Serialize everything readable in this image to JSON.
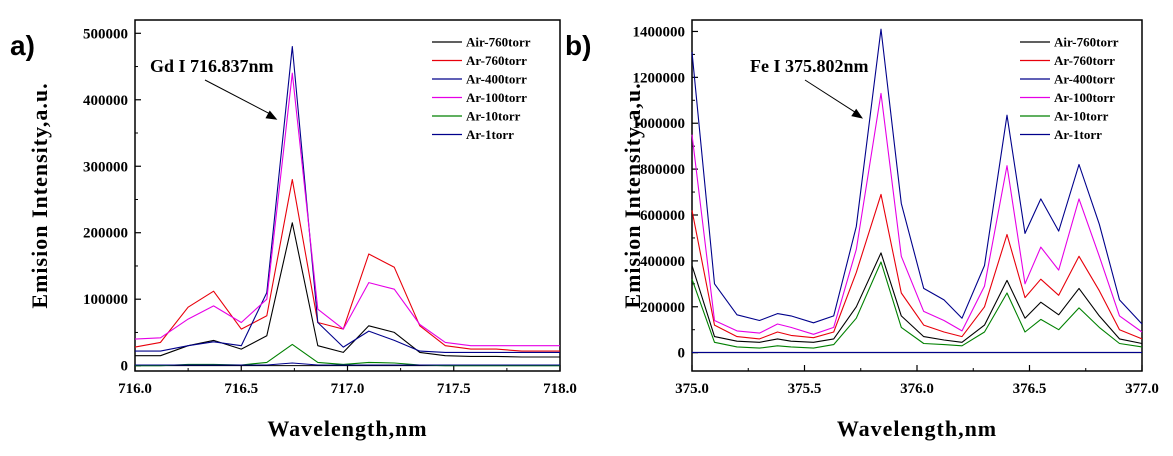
{
  "chart_data": [
    {
      "type": "line",
      "panel_label": "a)",
      "xlabel": "Wavelength,nm",
      "ylabel": "Emision Intensity,a.u.",
      "xlim": [
        716.0,
        718.0
      ],
      "ylim": [
        -8000,
        520000
      ],
      "x_ticks": [
        "716.0",
        "716.5",
        "717.0",
        "717.5",
        "718.0"
      ],
      "y_ticks": [
        "0",
        "100000",
        "200000",
        "300000",
        "400000",
        "500000"
      ],
      "grid": false,
      "legend_position": "top-right",
      "annotation": {
        "text": "Gd I 716.837nm",
        "target_x": 716.67,
        "target_y": 370000
      },
      "x": [
        716.0,
        716.12,
        716.25,
        716.37,
        716.5,
        716.62,
        716.74,
        716.86,
        716.98,
        717.1,
        717.22,
        717.34,
        717.46,
        717.58,
        717.7,
        717.82,
        717.94,
        718.0
      ],
      "series": [
        {
          "name": "Air-760torr",
          "color": "#000000",
          "values": [
            15000,
            15000,
            30000,
            38000,
            25000,
            45000,
            215000,
            30000,
            20000,
            60000,
            50000,
            20000,
            15000,
            14000,
            14000,
            13000,
            13000,
            13000
          ]
        },
        {
          "name": "Ar-760torr",
          "color": "#e8000b",
          "values": [
            28000,
            35000,
            88000,
            112000,
            55000,
            75000,
            280000,
            65000,
            55000,
            168000,
            148000,
            60000,
            30000,
            25000,
            25000,
            22000,
            22000,
            22000
          ]
        },
        {
          "name": "Ar-400torr",
          "color": "#00008b",
          "values": [
            22000,
            22000,
            30000,
            36000,
            30000,
            110000,
            480000,
            65000,
            28000,
            52000,
            38000,
            22000,
            20000,
            20000,
            20000,
            20000,
            20000,
            20000
          ]
        },
        {
          "name": "Ar-100torr",
          "color": "#e600e6",
          "values": [
            40000,
            42000,
            70000,
            90000,
            65000,
            100000,
            440000,
            85000,
            55000,
            125000,
            115000,
            62000,
            35000,
            30000,
            30000,
            30000,
            30000,
            30000
          ]
        },
        {
          "name": "Ar-10torr",
          "color": "#008000",
          "values": [
            0,
            0,
            2000,
            2000,
            1000,
            5000,
            32000,
            5000,
            2000,
            5000,
            4000,
            1000,
            0,
            0,
            0,
            0,
            0,
            0
          ]
        },
        {
          "name": "Ar-1torr",
          "color": "#00008b",
          "values": [
            1000,
            1000,
            1000,
            1000,
            1000,
            1000,
            4000,
            1000,
            1000,
            1000,
            1000,
            1000,
            1000,
            1000,
            1000,
            1000,
            1000,
            1000
          ]
        }
      ]
    },
    {
      "type": "line",
      "panel_label": "b)",
      "xlabel": "Wavelength,nm",
      "ylabel": "Emision Intensity,a,u.",
      "xlim": [
        375.0,
        377.0
      ],
      "ylim": [
        -80000,
        1450000
      ],
      "x_ticks": [
        "375.0",
        "375.5",
        "376.0",
        "376.5",
        "377.0"
      ],
      "y_ticks": [
        "0",
        "200000",
        "400000",
        "600000",
        "800000",
        "1000000",
        "1200000",
        "1400000"
      ],
      "grid": false,
      "legend_position": "top-right",
      "annotation": {
        "text": "Fe I 375.802nm",
        "target_x": 375.76,
        "target_y": 1020000
      },
      "x": [
        375.0,
        375.1,
        375.2,
        375.3,
        375.38,
        375.44,
        375.54,
        375.63,
        375.73,
        375.84,
        375.93,
        376.03,
        376.12,
        376.2,
        376.3,
        376.4,
        376.48,
        376.55,
        376.63,
        376.72,
        376.81,
        376.9,
        377.0
      ],
      "series": [
        {
          "name": "Air-760torr",
          "color": "#000000",
          "values": [
            380000,
            70000,
            50000,
            45000,
            60000,
            50000,
            45000,
            60000,
            200000,
            435000,
            160000,
            70000,
            55000,
            45000,
            120000,
            315000,
            150000,
            220000,
            165000,
            280000,
            160000,
            60000,
            40000
          ]
        },
        {
          "name": "Ar-760torr",
          "color": "#e8000b",
          "values": [
            620000,
            120000,
            70000,
            60000,
            90000,
            75000,
            65000,
            90000,
            350000,
            690000,
            260000,
            120000,
            90000,
            70000,
            200000,
            515000,
            240000,
            320000,
            250000,
            420000,
            270000,
            100000,
            60000
          ]
        },
        {
          "name": "Ar-400torr",
          "color": "#00008b",
          "values": [
            1310000,
            300000,
            165000,
            140000,
            170000,
            160000,
            130000,
            160000,
            550000,
            1410000,
            650000,
            280000,
            230000,
            150000,
            380000,
            1035000,
            520000,
            670000,
            530000,
            820000,
            560000,
            230000,
            125000
          ]
        },
        {
          "name": "Ar-100torr",
          "color": "#e600e6",
          "values": [
            950000,
            140000,
            95000,
            85000,
            125000,
            110000,
            80000,
            110000,
            450000,
            1130000,
            420000,
            180000,
            140000,
            95000,
            290000,
            815000,
            300000,
            460000,
            360000,
            670000,
            420000,
            160000,
            90000
          ]
        },
        {
          "name": "Ar-10torr",
          "color": "#008000",
          "values": [
            320000,
            45000,
            25000,
            20000,
            30000,
            25000,
            20000,
            35000,
            150000,
            395000,
            110000,
            40000,
            35000,
            30000,
            90000,
            260000,
            90000,
            145000,
            100000,
            195000,
            110000,
            40000,
            25000
          ]
        },
        {
          "name": "Ar-1torr",
          "color": "#00008b",
          "values": [
            1000,
            1000,
            1000,
            1000,
            1000,
            1000,
            1000,
            1000,
            1000,
            1000,
            1000,
            1000,
            1000,
            1000,
            1000,
            1000,
            1000,
            1000,
            1000,
            1000,
            1000,
            1000,
            1000
          ]
        }
      ]
    }
  ]
}
